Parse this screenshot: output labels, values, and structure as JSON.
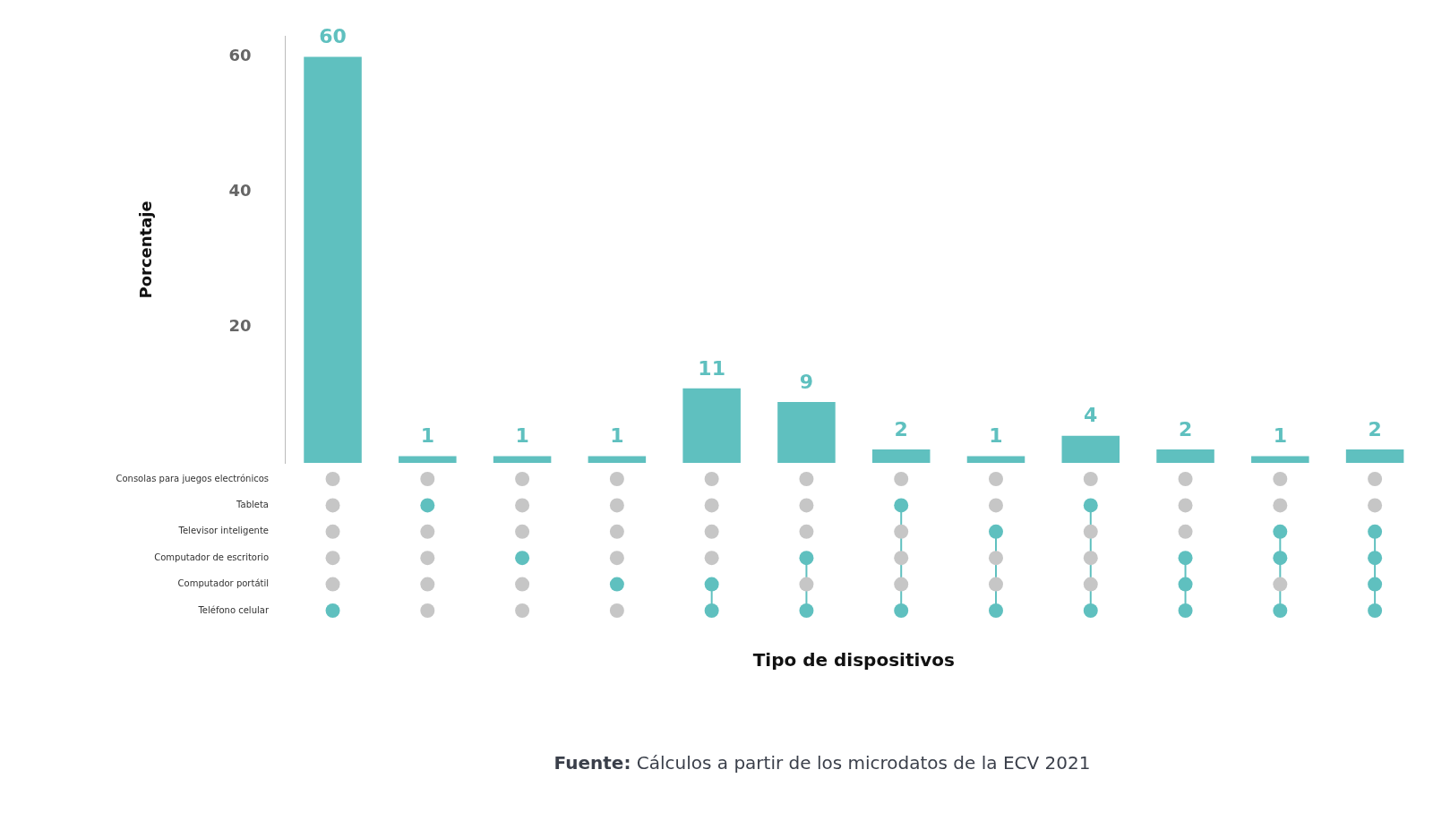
{
  "chart_data": {
    "type": "bar",
    "x_label": "Tipo de dispositivos",
    "y_label": "Porcentaje",
    "source_label": "Fuente:",
    "source": "Cálculos a partir de los microdatos de la ECV 2021",
    "categories": [
      null,
      null,
      null,
      null,
      null,
      null,
      null,
      null,
      null,
      null,
      null,
      null
    ],
    "values": [
      60,
      1,
      1,
      1,
      11,
      9,
      2,
      1,
      4,
      2,
      1,
      2
    ],
    "sets": [
      "Consolas para juegos electrónicos",
      "Tableta",
      "Televisor inteligente",
      "Computador de escritorio",
      "Computador portátil",
      "Teléfono celular"
    ],
    "memberships": [
      [
        "Teléfono celular"
      ],
      [
        "Tableta"
      ],
      [
        "Computador de escritorio"
      ],
      [
        "Computador portátil"
      ],
      [
        "Computador portátil",
        "Teléfono celular"
      ],
      [
        "Computador de escritorio",
        "Teléfono celular"
      ],
      [
        "Tableta",
        "Teléfono celular"
      ],
      [
        "Televisor inteligente",
        "Teléfono celular"
      ],
      [
        "Tableta",
        "Teléfono celular"
      ],
      [
        "Computador de escritorio",
        "Computador portátil",
        "Teléfono celular"
      ],
      [
        "Televisor inteligente",
        "Computador de escritorio",
        "Teléfono celular"
      ],
      [
        "Televisor inteligente",
        "Computador de escritorio",
        "Computador portátil",
        "Teléfono celular"
      ]
    ],
    "color": "#5fc0bf",
    "ylim": [
      0,
      63
    ],
    "yticks": [
      20,
      40,
      60
    ],
    "grid": false,
    "data_labels": true
  }
}
